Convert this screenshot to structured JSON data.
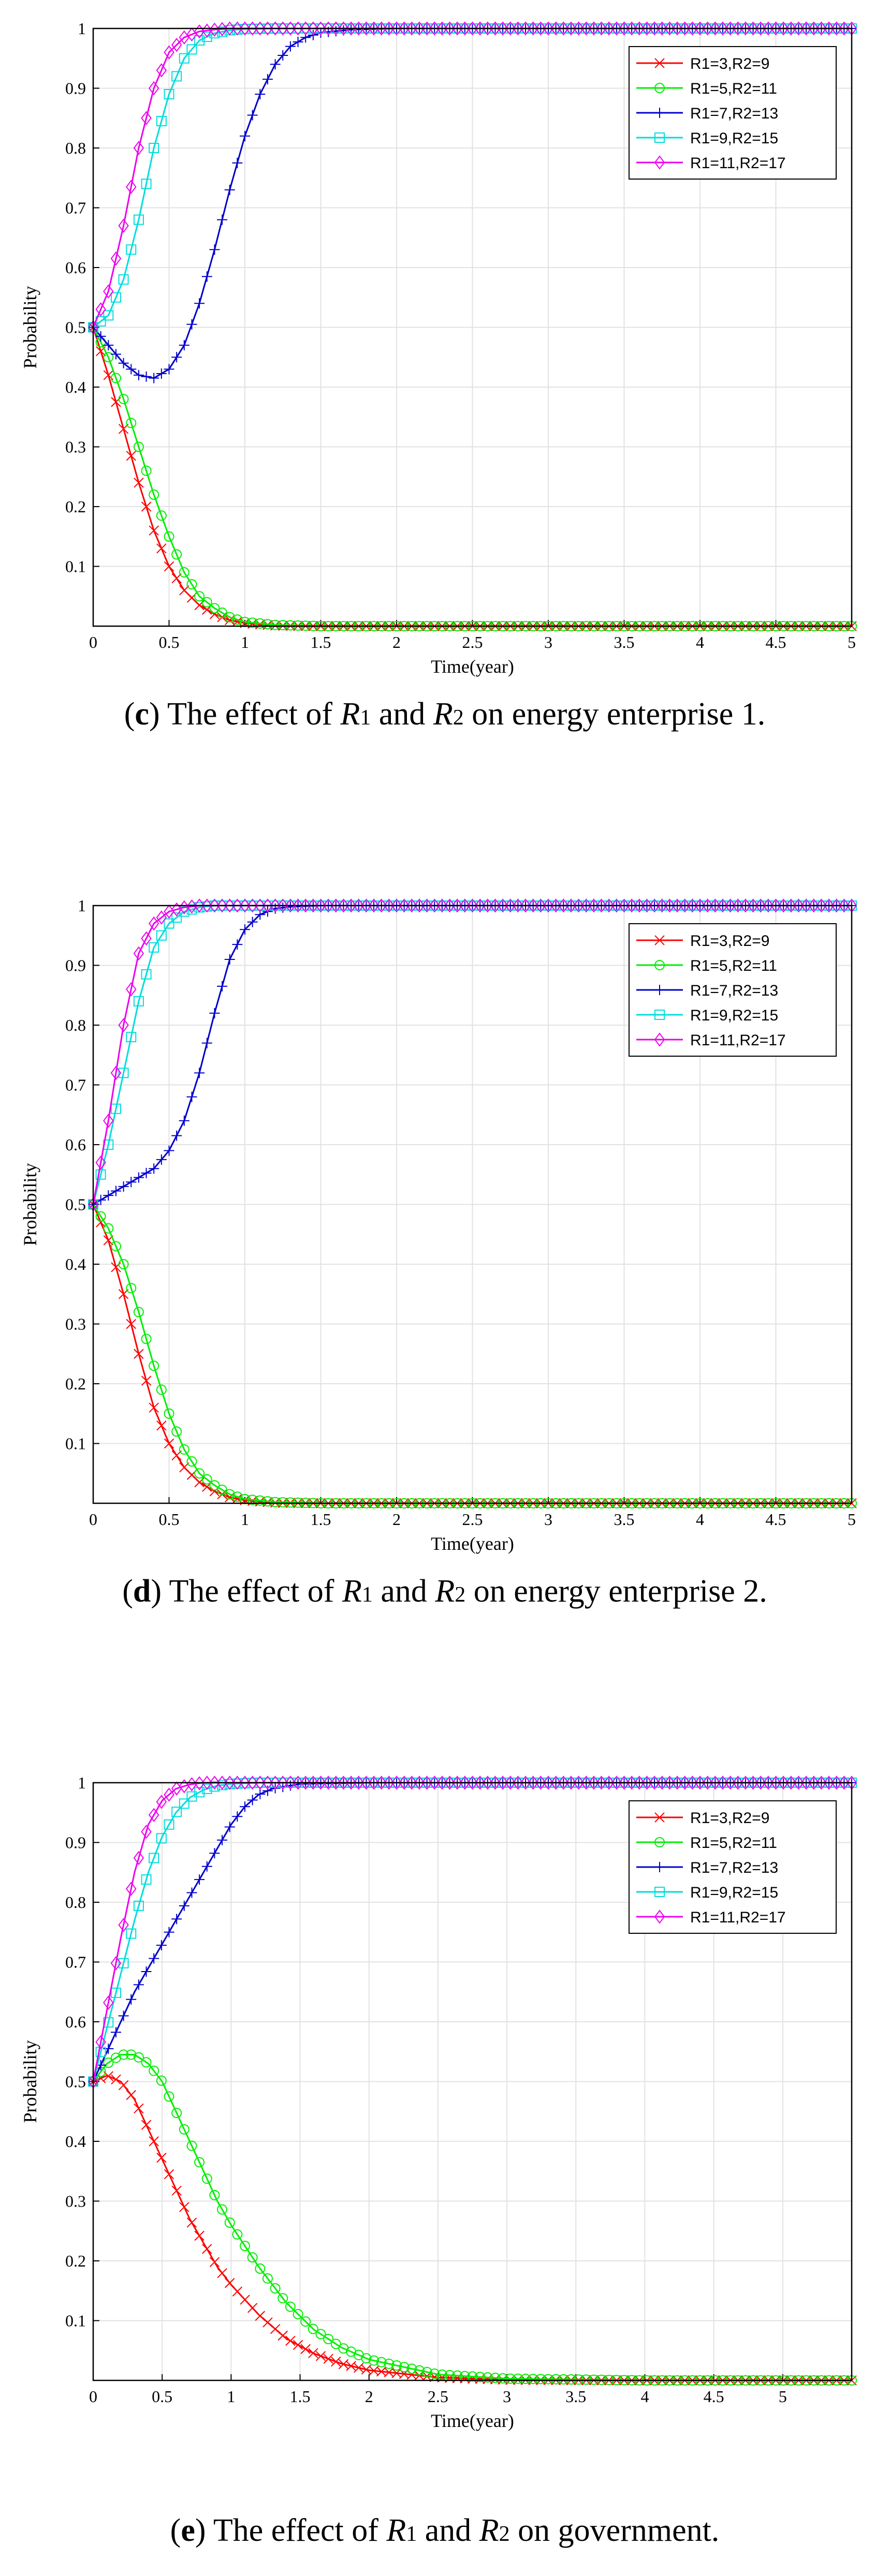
{
  "chart_data": [
    {
      "type": "line",
      "panel": "c",
      "xlabel": "Time(year)",
      "ylabel": "Probability",
      "xlim": [
        0,
        5
      ],
      "ylim": [
        0,
        1
      ],
      "xticks": [
        0,
        0.5,
        1,
        1.5,
        2,
        2.5,
        3,
        3.5,
        4,
        4.5,
        5
      ],
      "xtick_labels": [
        "0",
        "0.5",
        "1",
        "1.5",
        "2",
        "2.5",
        "3",
        "3.5",
        "4",
        "4.5",
        "5"
      ],
      "yticks": [
        0.1,
        0.2,
        0.3,
        0.4,
        0.5,
        0.6,
        0.7,
        0.8,
        0.9,
        1
      ],
      "ytick_labels": [
        "0.1",
        "0.2",
        "0.3",
        "0.4",
        "0.5",
        "0.6",
        "0.7",
        "0.8",
        "0.9",
        "1"
      ],
      "grid": true,
      "legend_position": "top-right",
      "caption": {
        "label": "c",
        "pre": "The effect of ",
        "v1": "R",
        "s1": "1",
        "mid": " and ",
        "v2": "R",
        "s2": "2",
        "post": " on energy enterprise 1."
      },
      "series": [
        {
          "name": "R1=3,R2=9",
          "color": "#ff0000",
          "marker": "x",
          "x": [
            0,
            0.1,
            0.2,
            0.3,
            0.4,
            0.5,
            0.6,
            0.7,
            0.8,
            0.9,
            1.0,
            1.2,
            1.5,
            2,
            3,
            4,
            5
          ],
          "y": [
            0.5,
            0.42,
            0.33,
            0.24,
            0.16,
            0.1,
            0.06,
            0.035,
            0.02,
            0.01,
            0.005,
            0.001,
            0,
            0,
            0,
            0,
            0
          ]
        },
        {
          "name": "R1=5,R2=11",
          "color": "#00ee00",
          "marker": "o",
          "x": [
            0,
            0.1,
            0.2,
            0.3,
            0.4,
            0.5,
            0.6,
            0.7,
            0.8,
            0.9,
            1.0,
            1.2,
            1.5,
            2,
            3,
            4,
            5
          ],
          "y": [
            0.5,
            0.45,
            0.38,
            0.3,
            0.22,
            0.15,
            0.09,
            0.05,
            0.03,
            0.015,
            0.007,
            0.002,
            0,
            0,
            0,
            0,
            0
          ]
        },
        {
          "name": "R1=7,R2=13",
          "color": "#0000cc",
          "marker": "+",
          "x": [
            0,
            0.1,
            0.2,
            0.3,
            0.4,
            0.5,
            0.6,
            0.7,
            0.8,
            0.9,
            1.0,
            1.1,
            1.2,
            1.3,
            1.4,
            1.5,
            1.7,
            2,
            3,
            4,
            5
          ],
          "y": [
            0.5,
            0.47,
            0.44,
            0.42,
            0.415,
            0.43,
            0.47,
            0.54,
            0.63,
            0.73,
            0.82,
            0.89,
            0.94,
            0.97,
            0.985,
            0.993,
            0.998,
            1,
            1,
            1,
            1
          ]
        },
        {
          "name": "R1=9,R2=15",
          "color": "#00dddd",
          "marker": "s",
          "x": [
            0,
            0.1,
            0.2,
            0.3,
            0.4,
            0.5,
            0.6,
            0.7,
            0.8,
            0.9,
            1.0,
            1.2,
            1.5,
            2,
            3,
            4,
            5
          ],
          "y": [
            0.5,
            0.52,
            0.58,
            0.68,
            0.8,
            0.89,
            0.95,
            0.98,
            0.992,
            0.997,
            0.999,
            1,
            1,
            1,
            1,
            1,
            1
          ]
        },
        {
          "name": "R1=11,R2=17",
          "color": "#ee00ee",
          "marker": "d",
          "x": [
            0,
            0.1,
            0.2,
            0.3,
            0.4,
            0.5,
            0.6,
            0.7,
            0.8,
            0.9,
            1.0,
            1.2,
            1.5,
            2,
            3,
            4,
            5
          ],
          "y": [
            0.5,
            0.56,
            0.67,
            0.8,
            0.9,
            0.96,
            0.985,
            0.995,
            0.998,
            1,
            1,
            1,
            1,
            1,
            1,
            1,
            1
          ]
        }
      ]
    },
    {
      "type": "line",
      "panel": "d",
      "xlabel": "Time(year)",
      "ylabel": "Probability",
      "xlim": [
        0,
        5
      ],
      "ylim": [
        0,
        1
      ],
      "xticks": [
        0,
        0.5,
        1,
        1.5,
        2,
        2.5,
        3,
        3.5,
        4,
        4.5,
        5
      ],
      "xtick_labels": [
        "0",
        "0.5",
        "1",
        "1.5",
        "2",
        "2.5",
        "3",
        "3.5",
        "4",
        "4.5",
        "5"
      ],
      "yticks": [
        0.1,
        0.2,
        0.3,
        0.4,
        0.5,
        0.6,
        0.7,
        0.8,
        0.9,
        1
      ],
      "ytick_labels": [
        "0.1",
        "0.2",
        "0.3",
        "0.4",
        "0.5",
        "0.6",
        "0.7",
        "0.8",
        "0.9",
        "1"
      ],
      "grid": true,
      "legend_position": "top-right",
      "caption": {
        "label": "d",
        "pre": "The effect of ",
        "v1": "R",
        "s1": "1",
        "mid": " and ",
        "v2": "R",
        "s2": "2",
        "post": " on energy enterprise 2."
      },
      "series": [
        {
          "name": "R1=3,R2=9",
          "color": "#ff0000",
          "marker": "x",
          "x": [
            0,
            0.1,
            0.2,
            0.3,
            0.4,
            0.5,
            0.6,
            0.7,
            0.8,
            0.9,
            1.0,
            1.2,
            1.5,
            2,
            3,
            4,
            5
          ],
          "y": [
            0.5,
            0.44,
            0.35,
            0.25,
            0.16,
            0.1,
            0.06,
            0.035,
            0.02,
            0.01,
            0.005,
            0.001,
            0,
            0,
            0,
            0,
            0
          ]
        },
        {
          "name": "R1=5,R2=11",
          "color": "#00ee00",
          "marker": "o",
          "x": [
            0,
            0.1,
            0.2,
            0.3,
            0.4,
            0.5,
            0.6,
            0.7,
            0.8,
            0.9,
            1.0,
            1.2,
            1.5,
            2,
            3,
            4,
            5
          ],
          "y": [
            0.5,
            0.46,
            0.4,
            0.32,
            0.23,
            0.15,
            0.09,
            0.05,
            0.03,
            0.015,
            0.007,
            0.002,
            0,
            0,
            0,
            0,
            0
          ]
        },
        {
          "name": "R1=7,R2=13",
          "color": "#0000cc",
          "marker": "+",
          "x": [
            0,
            0.1,
            0.2,
            0.3,
            0.4,
            0.5,
            0.6,
            0.7,
            0.8,
            0.9,
            1.0,
            1.1,
            1.2,
            1.3,
            1.5,
            2,
            3,
            4,
            5
          ],
          "y": [
            0.5,
            0.515,
            0.53,
            0.545,
            0.56,
            0.59,
            0.64,
            0.72,
            0.82,
            0.91,
            0.96,
            0.985,
            0.995,
            0.998,
            1,
            1,
            1,
            1,
            1
          ]
        },
        {
          "name": "R1=9,R2=15",
          "color": "#00dddd",
          "marker": "s",
          "x": [
            0,
            0.1,
            0.2,
            0.3,
            0.4,
            0.5,
            0.6,
            0.7,
            0.8,
            0.9,
            1.0,
            1.2,
            1.5,
            2,
            3,
            4,
            5
          ],
          "y": [
            0.5,
            0.6,
            0.72,
            0.84,
            0.93,
            0.97,
            0.99,
            0.997,
            1,
            1,
            1,
            1,
            1,
            1,
            1,
            1,
            1
          ]
        },
        {
          "name": "R1=11,R2=17",
          "color": "#ee00ee",
          "marker": "d",
          "x": [
            0,
            0.1,
            0.2,
            0.3,
            0.4,
            0.5,
            0.6,
            0.7,
            0.8,
            0.9,
            1.0,
            1.2,
            1.5,
            2,
            3,
            4,
            5
          ],
          "y": [
            0.5,
            0.64,
            0.8,
            0.92,
            0.97,
            0.99,
            0.997,
            1,
            1,
            1,
            1,
            1,
            1,
            1,
            1,
            1,
            1
          ]
        }
      ]
    },
    {
      "type": "line",
      "panel": "e",
      "xlabel": "Time(year)",
      "ylabel": "Probability",
      "xlim": [
        0,
        5.5
      ],
      "ylim": [
        0,
        1
      ],
      "xticks": [
        0,
        0.5,
        1,
        1.5,
        2,
        2.5,
        3,
        3.5,
        4,
        4.5,
        5
      ],
      "xtick_labels": [
        "0",
        "0.5",
        "1",
        "1.5",
        "2",
        "2.5",
        "3",
        "3.5",
        "4",
        "4.5",
        "5"
      ],
      "yticks": [
        0.1,
        0.2,
        0.3,
        0.4,
        0.5,
        0.6,
        0.7,
        0.8,
        0.9,
        1
      ],
      "ytick_labels": [
        "0.1",
        "0.2",
        "0.3",
        "0.4",
        "0.5",
        "0.6",
        "0.7",
        "0.8",
        "0.9",
        "1"
      ],
      "grid": true,
      "legend_position": "top-right",
      "caption": {
        "label": "e",
        "pre": "The effect of ",
        "v1": "R",
        "s1": "1",
        "mid": " and ",
        "v2": "R",
        "s2": "2",
        "post": " on government."
      },
      "series": [
        {
          "name": "R1=3,R2=9",
          "color": "#ff0000",
          "marker": "x",
          "x": [
            0,
            0.1,
            0.2,
            0.3,
            0.4,
            0.5,
            0.6,
            0.7,
            0.8,
            0.9,
            1.0,
            1.2,
            1.4,
            1.6,
            1.8,
            2.0,
            2.5,
            3,
            4,
            5,
            5.5
          ],
          "y": [
            0.5,
            0.51,
            0.5,
            0.47,
            0.42,
            0.37,
            0.32,
            0.27,
            0.23,
            0.19,
            0.16,
            0.11,
            0.07,
            0.045,
            0.028,
            0.017,
            0.005,
            0.001,
            0,
            0,
            0
          ]
        },
        {
          "name": "R1=5,R2=11",
          "color": "#00ee00",
          "marker": "o",
          "x": [
            0,
            0.1,
            0.2,
            0.3,
            0.4,
            0.5,
            0.6,
            0.7,
            0.8,
            0.9,
            1.0,
            1.2,
            1.4,
            1.6,
            1.8,
            2.0,
            2.5,
            3,
            4,
            5,
            5.5
          ],
          "y": [
            0.5,
            0.53,
            0.545,
            0.545,
            0.53,
            0.5,
            0.45,
            0.4,
            0.35,
            0.3,
            0.26,
            0.19,
            0.13,
            0.085,
            0.055,
            0.035,
            0.01,
            0.003,
            0,
            0,
            0
          ]
        },
        {
          "name": "R1=7,R2=13",
          "color": "#0000cc",
          "marker": "+",
          "x": [
            0,
            0.1,
            0.2,
            0.3,
            0.4,
            0.5,
            0.6,
            0.7,
            0.8,
            0.9,
            1.0,
            1.1,
            1.2,
            1.3,
            1.5,
            2,
            3,
            4,
            5,
            5.5
          ],
          "y": [
            0.5,
            0.55,
            0.6,
            0.65,
            0.69,
            0.73,
            0.77,
            0.81,
            0.85,
            0.89,
            0.93,
            0.96,
            0.98,
            0.99,
            0.998,
            1,
            1,
            1,
            1,
            1
          ]
        },
        {
          "name": "R1=9,R2=15",
          "color": "#00dddd",
          "marker": "s",
          "x": [
            0,
            0.1,
            0.2,
            0.3,
            0.4,
            0.5,
            0.6,
            0.7,
            0.8,
            0.9,
            1.0,
            1.2,
            1.5,
            2,
            3,
            4,
            5,
            5.5
          ],
          "y": [
            0.5,
            0.59,
            0.68,
            0.77,
            0.85,
            0.91,
            0.95,
            0.975,
            0.988,
            0.995,
            0.998,
            1,
            1,
            1,
            1,
            1,
            1,
            1
          ]
        },
        {
          "name": "R1=11,R2=17",
          "color": "#ee00ee",
          "marker": "d",
          "x": [
            0,
            0.1,
            0.2,
            0.3,
            0.4,
            0.5,
            0.6,
            0.7,
            0.8,
            0.9,
            1.0,
            1.2,
            1.5,
            2,
            3,
            4,
            5,
            5.5
          ],
          "y": [
            0.5,
            0.62,
            0.74,
            0.85,
            0.93,
            0.97,
            0.99,
            0.997,
            1,
            1,
            1,
            1,
            1,
            1,
            1,
            1,
            1,
            1
          ]
        }
      ]
    }
  ]
}
